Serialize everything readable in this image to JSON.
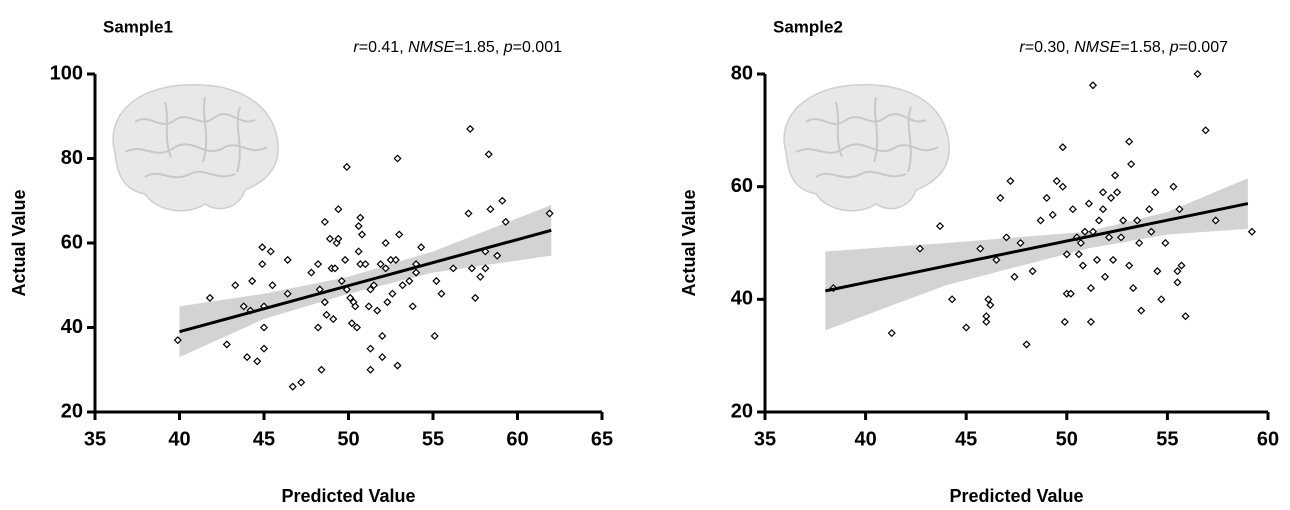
{
  "chart_data": [
    {
      "type": "scatter",
      "title": "Sample1",
      "x_label": "Predicted Value",
      "y_label": "Actual Value",
      "annotation": [
        "r",
        "=0.41, ",
        "NMSE",
        "=1.85, ",
        "p",
        "=0.001"
      ],
      "xlim": [
        35,
        65
      ],
      "ylim": [
        20,
        100
      ],
      "xticks": [
        35,
        40,
        45,
        50,
        55,
        60,
        65
      ],
      "yticks": [
        20,
        40,
        60,
        80,
        100
      ],
      "color": "#000000",
      "fit_color": "#000000",
      "band_color": "#d3d3d3",
      "x": [
        39.9,
        41.8,
        42.8,
        43.3,
        43.8,
        44,
        44.2,
        44.3,
        44.6,
        44.9,
        45,
        45,
        45,
        45.4,
        44.9,
        45.5,
        46.4,
        46.4,
        46.7,
        47.2,
        47.8,
        48.2,
        48.2,
        48.4,
        48.3,
        48.6,
        48.6,
        48.7,
        48.9,
        49,
        49.2,
        49.1,
        49.3,
        49.4,
        49.4,
        49.6,
        49.8,
        49.9,
        49.9,
        50.1,
        50.2,
        50.3,
        50.4,
        50.5,
        50.6,
        50.6,
        50.7,
        50.7,
        50.8,
        51,
        51.2,
        51.3,
        51.3,
        51.3,
        51.5,
        51.7,
        51.9,
        52,
        52,
        52.2,
        52.2,
        52.3,
        52.5,
        52.8,
        52.6,
        52.9,
        53,
        52.9,
        53.2,
        53.6,
        53.8,
        54,
        54,
        54.3,
        55.1,
        55.2,
        55.5,
        56.2,
        57.1,
        57.2,
        57.3,
        57.5,
        57.8,
        58.1,
        58.1,
        58.3,
        58.4,
        58.8,
        59.1,
        59.3,
        61.9
      ],
      "y": [
        37,
        47,
        36,
        50,
        45,
        33,
        44,
        51,
        32,
        59,
        45,
        40,
        35,
        58,
        55,
        50,
        56,
        48,
        26,
        27,
        53,
        55,
        40,
        30,
        49,
        65,
        46,
        43,
        61,
        54,
        54,
        42,
        60,
        68,
        61,
        51,
        56,
        78,
        49,
        47,
        41,
        46,
        45,
        40,
        64,
        58,
        66,
        55,
        62,
        55,
        45,
        30,
        35,
        49,
        50,
        44,
        55,
        38,
        33,
        60,
        54,
        46,
        56,
        56,
        48,
        31,
        62,
        80,
        50,
        51,
        45,
        53,
        55,
        59,
        38,
        51,
        48,
        54,
        67,
        87,
        54,
        47,
        52,
        58,
        54,
        81,
        68,
        57,
        70,
        65,
        67
      ],
      "fit": {
        "x": [
          40,
          62
        ],
        "y": [
          39,
          63
        ]
      },
      "band": {
        "x": [
          40,
          45,
          50,
          55,
          62
        ],
        "lower": [
          33,
          42,
          48,
          53,
          57
        ],
        "upper": [
          45,
          48,
          52,
          58,
          69
        ]
      }
    },
    {
      "type": "scatter",
      "title": "Sample2",
      "x_label": "Predicted Value",
      "y_label": "Actual Value",
      "annotation": [
        "r",
        "=0.30, ",
        "NMSE",
        "=1.58, ",
        "p",
        "=0.007"
      ],
      "xlim": [
        35,
        60
      ],
      "ylim": [
        20,
        80
      ],
      "xticks": [
        35,
        40,
        45,
        50,
        55,
        60
      ],
      "yticks": [
        20,
        40,
        60,
        80
      ],
      "color": "#000000",
      "fit_color": "#000000",
      "band_color": "#d3d3d3",
      "x": [
        38.4,
        41.3,
        42.7,
        43.7,
        44.3,
        45,
        45.7,
        46.1,
        46,
        46,
        46.2,
        46.5,
        46.7,
        47,
        47.2,
        47.4,
        47.7,
        48,
        48.3,
        48.7,
        49,
        49.3,
        49.5,
        49.8,
        49.8,
        50,
        50,
        49.9,
        50.2,
        50.3,
        50.5,
        50.6,
        50.7,
        50.9,
        50.8,
        51.1,
        51.2,
        51.2,
        51.3,
        51.3,
        51.5,
        51.6,
        51.8,
        51.8,
        51.9,
        52.1,
        52.2,
        52.3,
        52.4,
        52.5,
        52.7,
        52.8,
        53.1,
        53.1,
        53.2,
        53.3,
        53.5,
        53.6,
        53.7,
        54.1,
        54.2,
        54.4,
        54.5,
        54.7,
        54.9,
        55.3,
        55.5,
        55.6,
        55.7,
        55.9,
        55.5,
        56.5,
        56.9,
        57.4,
        59.2
      ],
      "y": [
        42,
        34,
        49,
        53,
        40,
        35,
        49,
        40,
        37,
        36,
        39,
        47,
        58,
        51,
        61,
        44,
        50,
        32,
        45,
        54,
        58,
        55,
        61,
        60,
        67,
        48,
        41,
        36,
        41,
        56,
        51,
        48,
        50,
        52,
        46,
        57,
        42,
        36,
        52,
        78,
        47,
        54,
        59,
        56,
        44,
        51,
        58,
        47,
        62,
        59,
        51,
        54,
        46,
        68,
        64,
        42,
        54,
        50,
        38,
        56,
        52,
        59,
        45,
        40,
        50,
        60,
        45,
        56,
        46,
        37,
        43,
        80,
        70,
        54,
        52
      ],
      "fit": {
        "x": [
          38,
          59
        ],
        "y": [
          41.5,
          57
        ]
      },
      "band": {
        "x": [
          38,
          44,
          51,
          55,
          59
        ],
        "lower": [
          34.5,
          42.5,
          49,
          51.5,
          52.5
        ],
        "upper": [
          48.5,
          50,
          52,
          55.5,
          61.5
        ]
      }
    }
  ]
}
